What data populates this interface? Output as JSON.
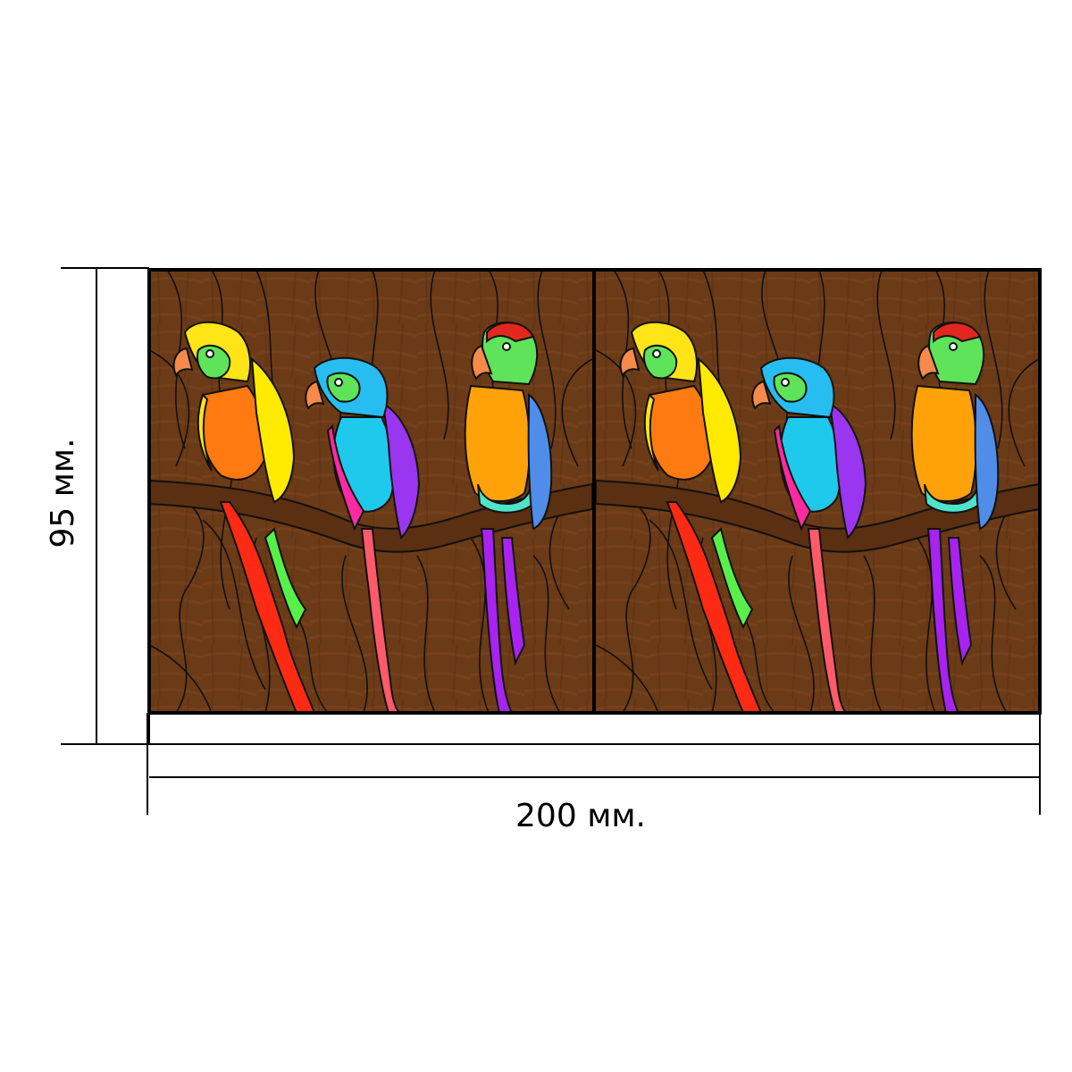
{
  "dimensions": {
    "height_label": "95 мм.",
    "width_label": "200 мм."
  },
  "artwork": {
    "panels": 2,
    "background_color": "#6b3a17",
    "branch_color": "#5a2f12",
    "lead_color": "#111111",
    "parrots": [
      {
        "name": "yellow-orange-parrot",
        "head": "#ffe418",
        "body": "#ff7a10",
        "wing": "#ffea00",
        "tail": "#ff2a14",
        "tail_accent": "#59ef4a",
        "face": "#5fe35a"
      },
      {
        "name": "blue-pink-parrot",
        "head": "#27bdf0",
        "body": "#1ec9ec",
        "wing": "#9a35f0",
        "tail": "#ff5a6a",
        "tail_accent": "#ff2aa0",
        "face": "#5fe35a"
      },
      {
        "name": "orange-purple-parrot",
        "head": "#e3271f",
        "body": "#ffa20a",
        "wing": "#4f8de8",
        "tail": "#a823f0",
        "tail_accent": "#4fe3c8",
        "face": "#5fe35a"
      }
    ]
  }
}
